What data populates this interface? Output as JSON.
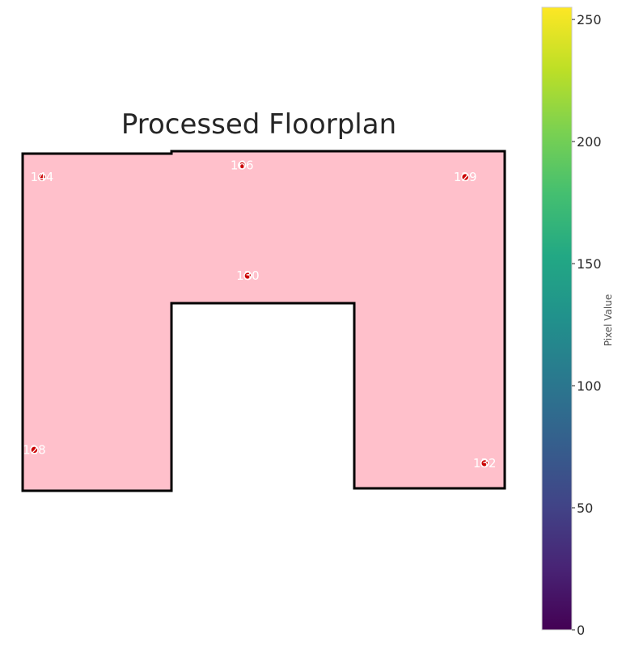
{
  "chart_data": {
    "type": "heatmap",
    "title": "Processed Floorplan",
    "floor_color": "#ffc0cb",
    "wall_color": "#000000",
    "point_color": "#cc0000",
    "label_color": "#ffffff",
    "points": [
      {
        "label": "144",
        "x": 0.5,
        "y": 0.7
      },
      {
        "label": "166",
        "x": 5.65,
        "y": 0.35
      },
      {
        "label": "129",
        "x": 11.4,
        "y": 0.7
      },
      {
        "label": "130",
        "x": 5.8,
        "y": 3.65
      },
      {
        "label": "128",
        "x": 0.3,
        "y": 8.85
      },
      {
        "label": "132",
        "x": 11.9,
        "y": 9.25
      }
    ],
    "colorbar": {
      "label": "Pixel Value",
      "colormap": "viridis",
      "range": [
        0,
        255
      ],
      "ticks": [
        "0",
        "50",
        "100",
        "150",
        "200",
        "250"
      ],
      "tick_values": [
        0,
        50,
        100,
        150,
        200,
        250
      ]
    }
  }
}
